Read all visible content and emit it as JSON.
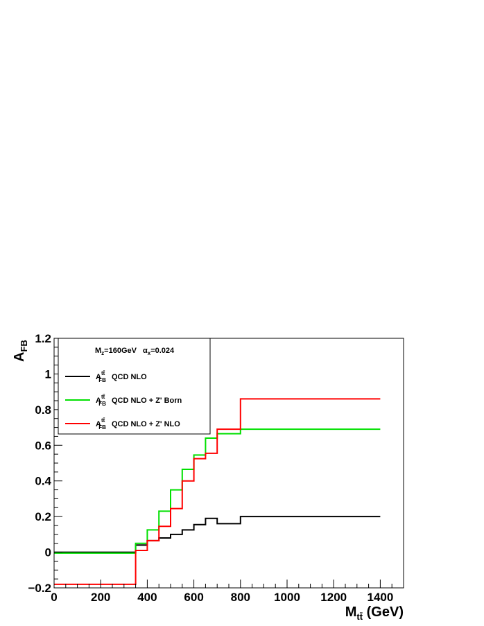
{
  "chart_data": {
    "type": "line",
    "step": true,
    "xlabel_main": "M",
    "xlabel_sub": "tt̄",
    "xlabel_unit": " (GeV)",
    "ylabel_main": "A",
    "ylabel_sub": "FB",
    "xlim": [
      0,
      1500
    ],
    "ylim": [
      -0.2,
      1.2
    ],
    "x_ticks": [
      0,
      200,
      400,
      600,
      800,
      1000,
      1200,
      1400
    ],
    "x_tick_labels": [
      "0",
      "200",
      "400",
      "600",
      "800",
      "1000",
      "1200",
      "1400"
    ],
    "y_ticks": [
      -0.2,
      0,
      0.2,
      0.4,
      0.6,
      0.8,
      1,
      1.2
    ],
    "y_tick_labels": [
      "−0.2",
      "0",
      "0.2",
      "0.4",
      "0.6",
      "0.8",
      "1",
      "1.2"
    ],
    "grid": false,
    "legend_placement": "top-left",
    "legend": {
      "header_m": "M",
      "header_m_sub": "z",
      "header_m_val": "=160GeV",
      "header_alpha": "α",
      "header_alpha_sub": "x",
      "header_alpha_val": "=0.024",
      "entry_prefix": "A",
      "entry_prefix_sup": "tt̄",
      "entry_prefix_sub": "FB"
    },
    "bin_edges": [
      0,
      350,
      400,
      450,
      500,
      550,
      600,
      650,
      700,
      800,
      1400
    ],
    "series": [
      {
        "name": "QCD NLO",
        "color": "#000000",
        "values": [
          0.0,
          0.04,
          0.065,
          0.08,
          0.1,
          0.125,
          0.155,
          0.19,
          0.16,
          0.2
        ]
      },
      {
        "name": "QCD NLO + Z' Born",
        "color": "#00e000",
        "values": [
          -0.005,
          0.05,
          0.125,
          0.23,
          0.35,
          0.465,
          0.545,
          0.64,
          0.665,
          0.69
        ]
      },
      {
        "name": "QCD NLO + Z' NLO",
        "color": "#ff0000",
        "values": [
          -0.18,
          0.01,
          0.065,
          0.145,
          0.245,
          0.4,
          0.525,
          0.555,
          0.69,
          0.86
        ]
      }
    ]
  }
}
